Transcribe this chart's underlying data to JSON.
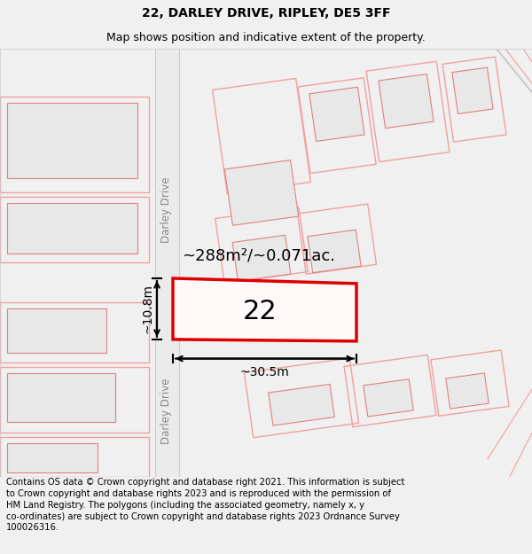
{
  "title": "22, DARLEY DRIVE, RIPLEY, DE5 3FF",
  "subtitle": "Map shows position and indicative extent of the property.",
  "footer": "Contains OS data © Crown copyright and database right 2021. This information is subject to Crown copyright and database rights 2023 and is reproduced with the permission of HM Land Registry. The polygons (including the associated geometry, namely x, y co-ordinates) are subject to Crown copyright and database rights 2023 Ordnance Survey 100026316.",
  "bg_color": "#f0f0f0",
  "map_bg": "#ffffff",
  "plot_edge_color": "#dd0000",
  "road_outline_color": "#f0a0a0",
  "building_fill_color": "#e8e8e8",
  "building_edge_color": "#e08080",
  "road_fill_color": "#ebebeb",
  "plot_number": "22",
  "area_label": "~288m²/~0.071ac.",
  "width_label": "~30.5m",
  "height_label": "~10.8m",
  "road_label": "Darley Drive",
  "title_fontsize": 10,
  "subtitle_fontsize": 9,
  "footer_fontsize": 7.2,
  "annotation_color": "#000000",
  "road_text_color": "#888888"
}
